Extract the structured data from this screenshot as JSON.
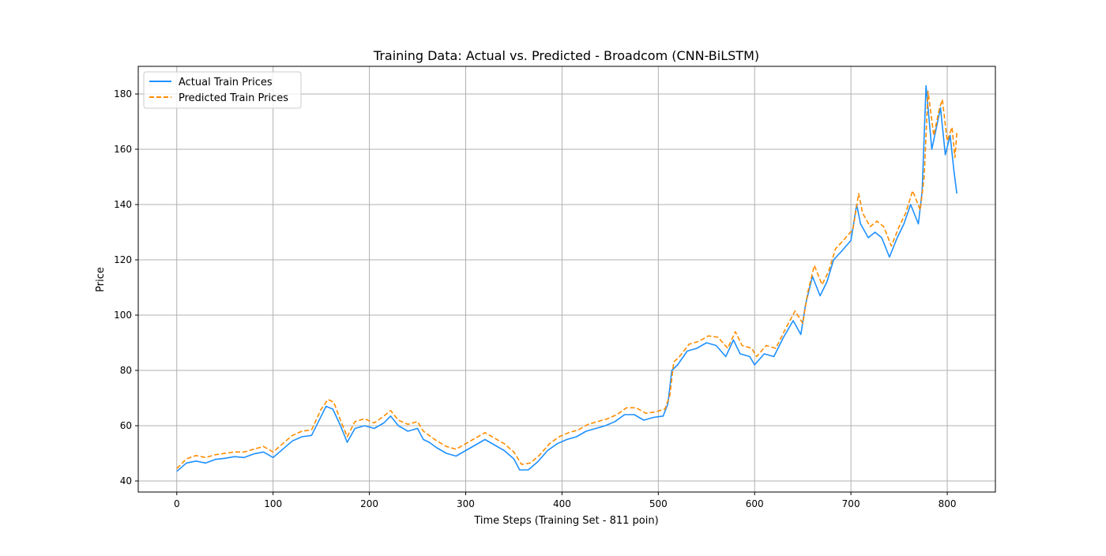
{
  "chart_data": {
    "type": "line",
    "title": "Training Data: Actual vs. Predicted - Broadcom (CNN-BiLSTM)",
    "xlabel": "Time Steps (Training Set - 811 poin)",
    "ylabel": "Price",
    "xlim": [
      -40,
      850
    ],
    "ylim": [
      36,
      190
    ],
    "xticks": [
      0,
      100,
      200,
      300,
      400,
      500,
      600,
      700,
      800
    ],
    "yticks": [
      40,
      60,
      80,
      100,
      120,
      140,
      160,
      180
    ],
    "grid": true,
    "legend_position": "top-left",
    "series": [
      {
        "name": "Actual Train Prices",
        "color": "#1e90ff",
        "style": "solid",
        "points": [
          [
            0,
            43.5
          ],
          [
            10,
            46.5
          ],
          [
            20,
            47.2
          ],
          [
            30,
            46.5
          ],
          [
            40,
            47.8
          ],
          [
            50,
            48.2
          ],
          [
            60,
            48.8
          ],
          [
            70,
            48.5
          ],
          [
            80,
            49.8
          ],
          [
            90,
            50.5
          ],
          [
            100,
            48.5
          ],
          [
            110,
            51.5
          ],
          [
            120,
            54.5
          ],
          [
            130,
            56
          ],
          [
            140,
            56.5
          ],
          [
            150,
            63.5
          ],
          [
            155,
            67
          ],
          [
            162,
            66
          ],
          [
            170,
            60
          ],
          [
            177,
            54
          ],
          [
            185,
            59
          ],
          [
            195,
            60
          ],
          [
            205,
            59
          ],
          [
            215,
            61
          ],
          [
            222,
            63.5
          ],
          [
            230,
            60
          ],
          [
            240,
            58
          ],
          [
            250,
            59
          ],
          [
            256,
            55
          ],
          [
            262,
            54
          ],
          [
            270,
            52
          ],
          [
            280,
            50
          ],
          [
            290,
            49
          ],
          [
            300,
            51
          ],
          [
            310,
            53
          ],
          [
            320,
            55
          ],
          [
            330,
            53
          ],
          [
            340,
            51
          ],
          [
            350,
            48
          ],
          [
            356,
            44
          ],
          [
            365,
            44
          ],
          [
            375,
            47
          ],
          [
            385,
            51
          ],
          [
            395,
            53.5
          ],
          [
            405,
            55
          ],
          [
            415,
            56
          ],
          [
            425,
            58
          ],
          [
            435,
            59
          ],
          [
            445,
            60
          ],
          [
            455,
            61.5
          ],
          [
            465,
            64
          ],
          [
            475,
            64
          ],
          [
            485,
            62
          ],
          [
            495,
            63
          ],
          [
            505,
            63.5
          ],
          [
            510,
            68
          ],
          [
            514,
            80
          ],
          [
            520,
            82
          ],
          [
            530,
            87
          ],
          [
            540,
            88
          ],
          [
            550,
            90
          ],
          [
            560,
            89
          ],
          [
            570,
            85
          ],
          [
            578,
            91
          ],
          [
            585,
            86
          ],
          [
            595,
            85
          ],
          [
            600,
            82
          ],
          [
            610,
            86
          ],
          [
            620,
            85
          ],
          [
            630,
            92
          ],
          [
            640,
            98
          ],
          [
            648,
            93
          ],
          [
            653,
            104
          ],
          [
            660,
            114
          ],
          [
            668,
            107
          ],
          [
            675,
            112
          ],
          [
            682,
            120
          ],
          [
            690,
            123
          ],
          [
            700,
            127
          ],
          [
            706,
            140
          ],
          [
            710,
            133
          ],
          [
            718,
            128
          ],
          [
            725,
            130
          ],
          [
            732,
            128
          ],
          [
            740,
            121
          ],
          [
            748,
            128
          ],
          [
            755,
            133
          ],
          [
            762,
            140
          ],
          [
            770,
            133
          ],
          [
            774,
            145
          ],
          [
            778,
            183
          ],
          [
            784,
            160
          ],
          [
            790,
            170
          ],
          [
            793,
            175
          ],
          [
            798,
            158
          ],
          [
            803,
            165
          ],
          [
            807,
            152
          ],
          [
            810,
            144
          ]
        ]
      },
      {
        "name": "Predicted Train Prices",
        "color": "#ff8c00",
        "style": "dashed",
        "points": [
          [
            0,
            44.5
          ],
          [
            10,
            48
          ],
          [
            20,
            49.2
          ],
          [
            30,
            48.5
          ],
          [
            40,
            49.5
          ],
          [
            50,
            50
          ],
          [
            60,
            50.5
          ],
          [
            70,
            50.5
          ],
          [
            80,
            51.5
          ],
          [
            90,
            52.5
          ],
          [
            100,
            50.5
          ],
          [
            110,
            53.5
          ],
          [
            120,
            56.5
          ],
          [
            130,
            58
          ],
          [
            140,
            58.5
          ],
          [
            150,
            66
          ],
          [
            157,
            69.5
          ],
          [
            163,
            68.5
          ],
          [
            170,
            62
          ],
          [
            177,
            56
          ],
          [
            185,
            61.5
          ],
          [
            195,
            62.5
          ],
          [
            205,
            61
          ],
          [
            215,
            63.5
          ],
          [
            222,
            65.5
          ],
          [
            230,
            62
          ],
          [
            240,
            60.5
          ],
          [
            250,
            61.5
          ],
          [
            256,
            58
          ],
          [
            262,
            56.5
          ],
          [
            270,
            54.5
          ],
          [
            280,
            52.5
          ],
          [
            290,
            51.5
          ],
          [
            300,
            53.5
          ],
          [
            310,
            55.5
          ],
          [
            320,
            57.5
          ],
          [
            330,
            55.5
          ],
          [
            340,
            53.5
          ],
          [
            350,
            50.5
          ],
          [
            358,
            46
          ],
          [
            367,
            46.5
          ],
          [
            377,
            49.5
          ],
          [
            387,
            53.5
          ],
          [
            397,
            56
          ],
          [
            407,
            57.5
          ],
          [
            417,
            58.5
          ],
          [
            427,
            60.5
          ],
          [
            437,
            61.5
          ],
          [
            447,
            62.5
          ],
          [
            457,
            64
          ],
          [
            467,
            66.5
          ],
          [
            477,
            66.5
          ],
          [
            487,
            64.5
          ],
          [
            497,
            65
          ],
          [
            507,
            66
          ],
          [
            512,
            71
          ],
          [
            516,
            83
          ],
          [
            522,
            85
          ],
          [
            532,
            89.5
          ],
          [
            542,
            90.5
          ],
          [
            552,
            92.5
          ],
          [
            562,
            92
          ],
          [
            572,
            88
          ],
          [
            580,
            94
          ],
          [
            587,
            89
          ],
          [
            597,
            88
          ],
          [
            602,
            85
          ],
          [
            612,
            89
          ],
          [
            622,
            88
          ],
          [
            632,
            95
          ],
          [
            642,
            101.5
          ],
          [
            650,
            97
          ],
          [
            655,
            108
          ],
          [
            662,
            118
          ],
          [
            670,
            111
          ],
          [
            677,
            116
          ],
          [
            684,
            124
          ],
          [
            692,
            127
          ],
          [
            702,
            131
          ],
          [
            708,
            144
          ],
          [
            712,
            137
          ],
          [
            720,
            132
          ],
          [
            727,
            134
          ],
          [
            734,
            132
          ],
          [
            742,
            125
          ],
          [
            750,
            132
          ],
          [
            757,
            137
          ],
          [
            764,
            145
          ],
          [
            772,
            138
          ],
          [
            776,
            150
          ],
          [
            780,
            181
          ],
          [
            786,
            165
          ],
          [
            792,
            175
          ],
          [
            795,
            178
          ],
          [
            800,
            163
          ],
          [
            805,
            168
          ],
          [
            808,
            157
          ],
          [
            810,
            166
          ]
        ]
      }
    ]
  }
}
